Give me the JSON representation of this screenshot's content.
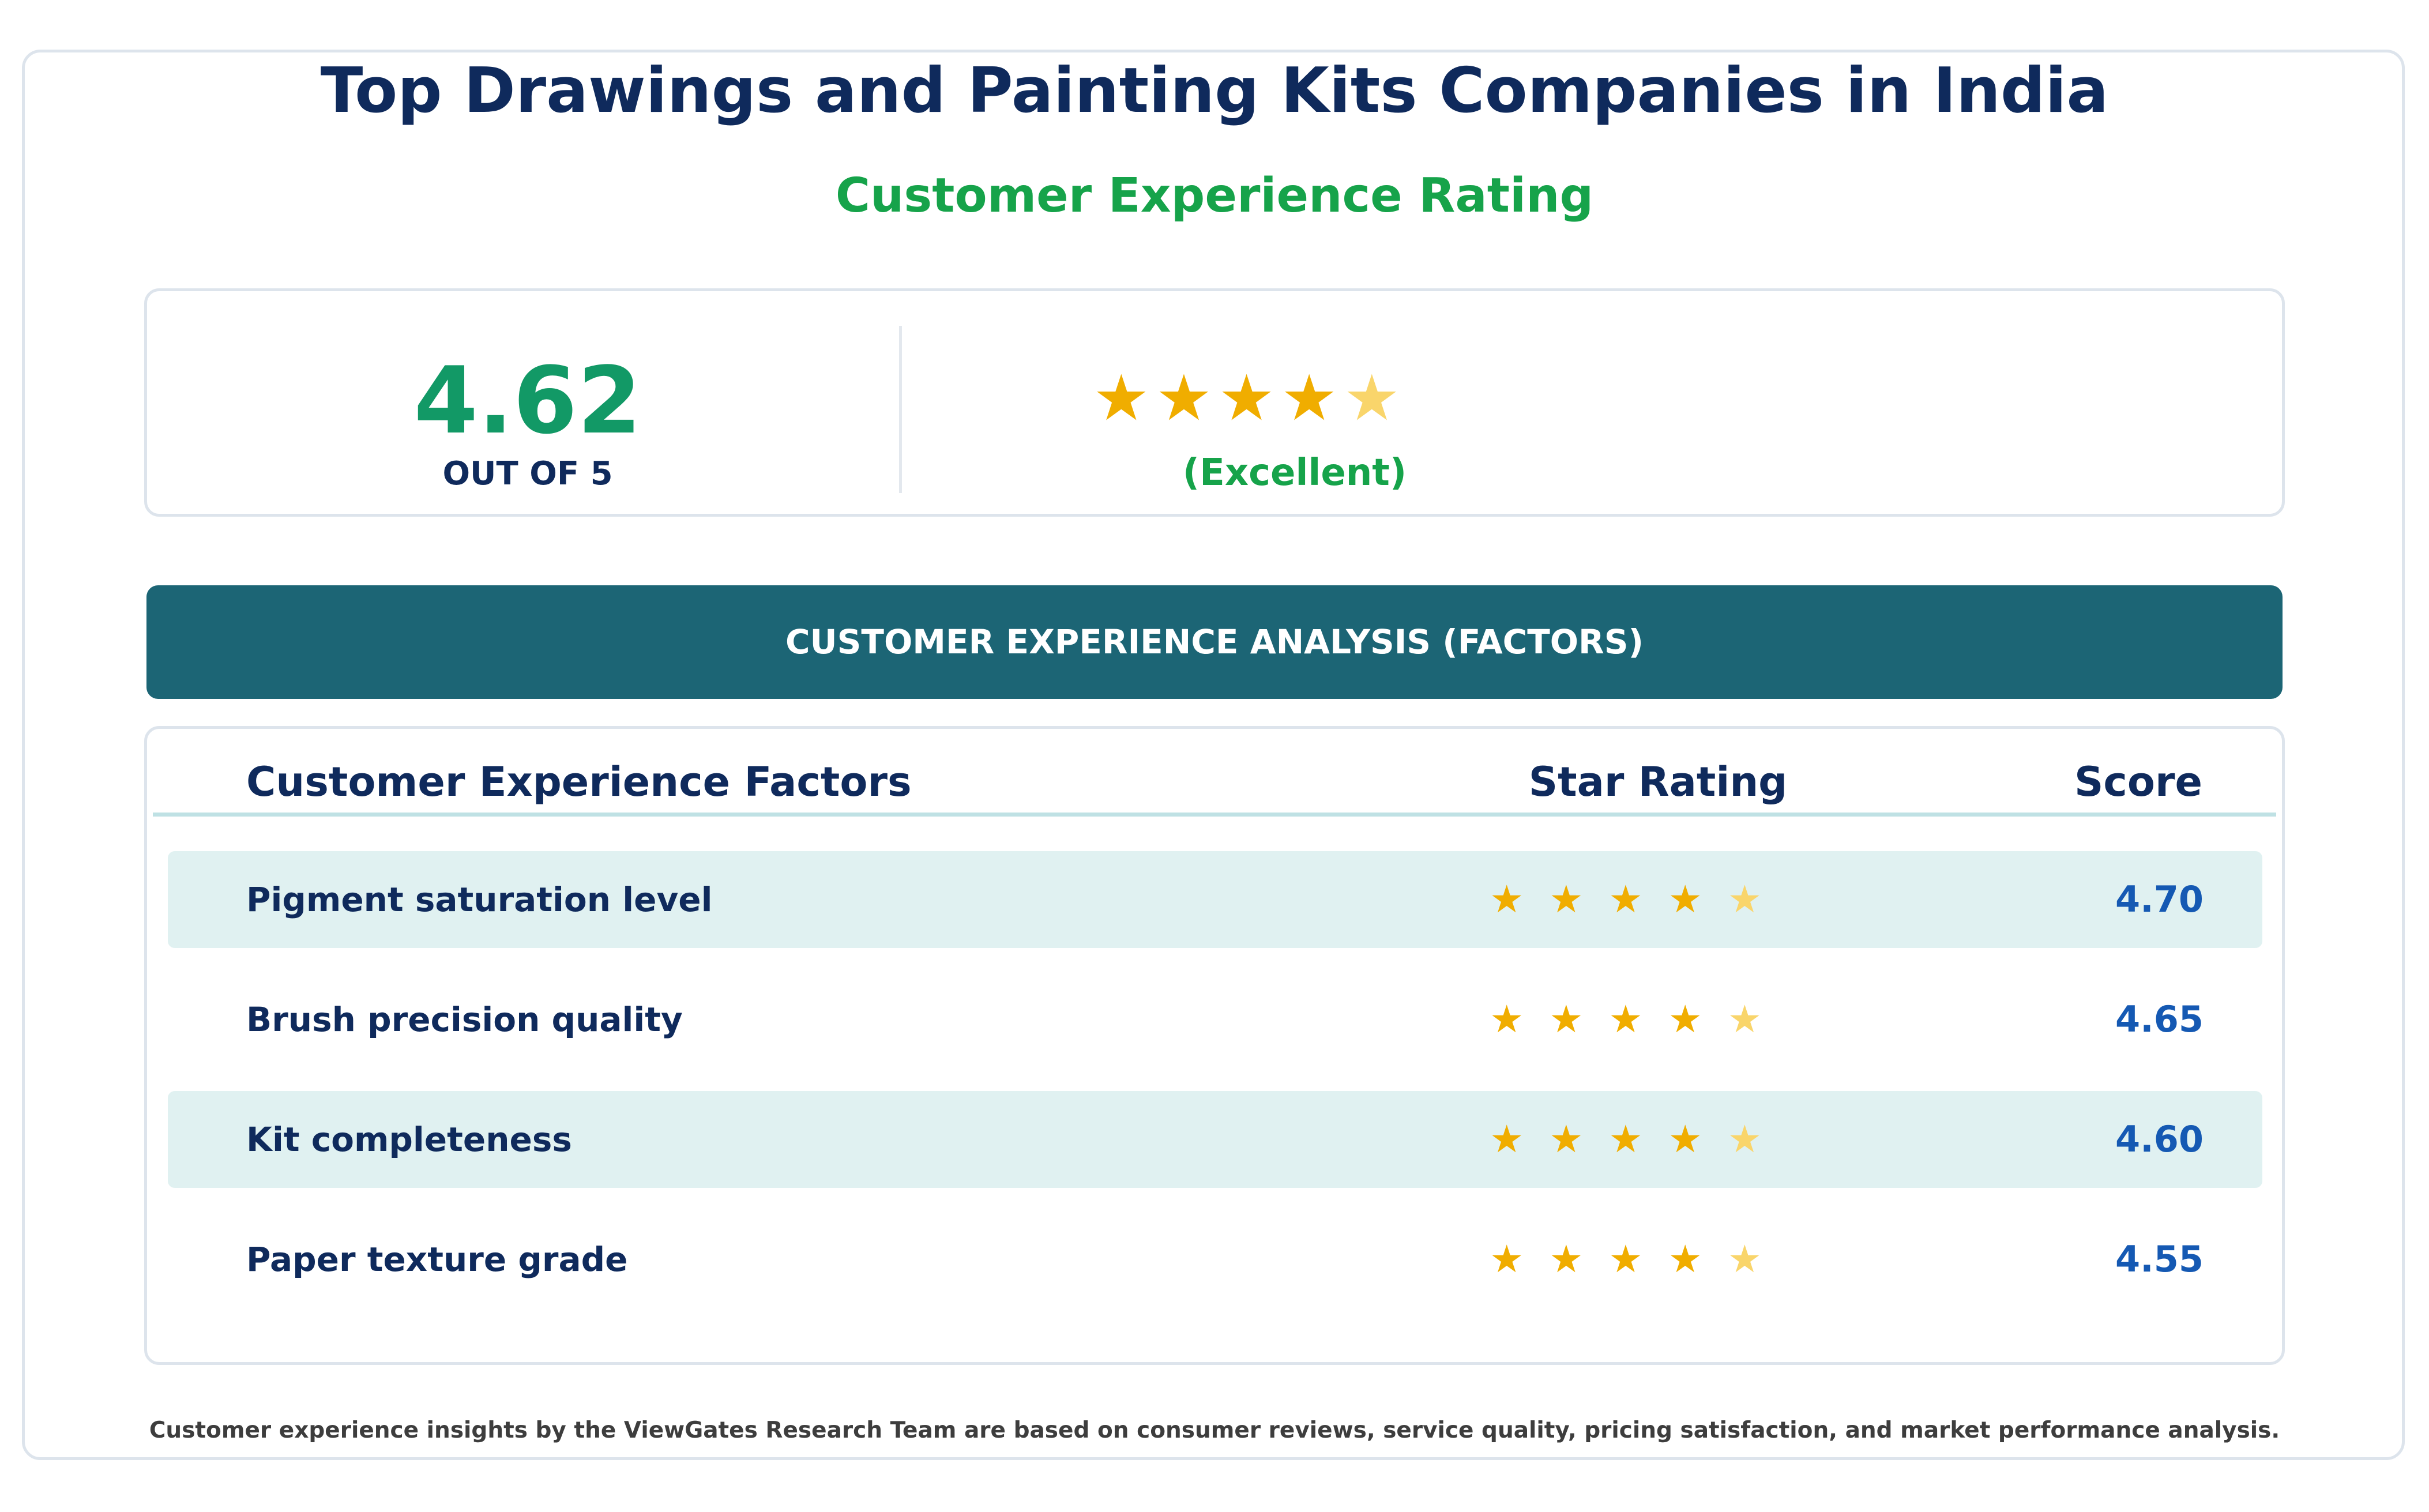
{
  "title": "Top Drawings and Painting Kits Companies in India",
  "subtitle": "Customer Experience Rating",
  "summary": {
    "score": "4.62",
    "out_of": "OUT OF 5",
    "stars_full": 4,
    "stars_half": 1,
    "rating_word": "(Excellent)"
  },
  "banner": "CUSTOMER EXPERIENCE ANALYSIS (FACTORS)",
  "table": {
    "headers": {
      "factor": "Customer Experience Factors",
      "stars": "Star Rating",
      "score": "Score"
    },
    "rows": [
      {
        "factor": "Pigment saturation level",
        "stars": "★★★★★",
        "score": "4.70"
      },
      {
        "factor": "Brush precision quality",
        "stars": "★★★★★",
        "score": "4.65"
      },
      {
        "factor": "Kit completeness",
        "stars": "★★★★★",
        "score": "4.60"
      },
      {
        "factor": "Paper texture grade",
        "stars": "★★★★★",
        "score": "4.55"
      }
    ]
  },
  "footer": "Customer experience insights by the ViewGates Research Team are based on consumer reviews, service quality, pricing satisfaction, and market performance analysis.",
  "colors": {
    "title": "#0f2a5c",
    "accent_green": "#16a34a",
    "score_green": "#129966",
    "banner": "#1c6575",
    "star_full": "#f0ad00",
    "star_half": "#f9d56b",
    "score_blue": "#1559b3",
    "row_shade": "#e0f1f1"
  }
}
